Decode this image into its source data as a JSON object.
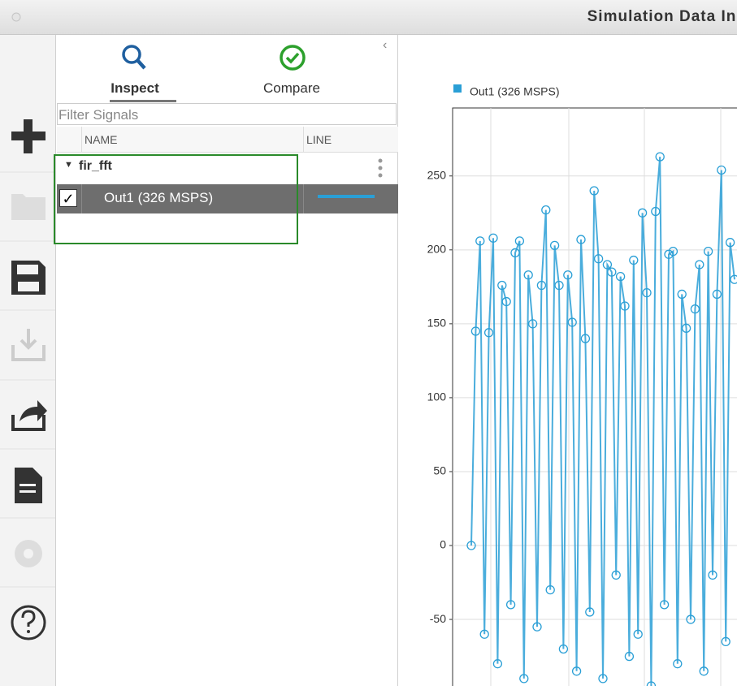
{
  "window": {
    "title": "Simulation Data Inspector"
  },
  "tabs": [
    "Inspect",
    "Compare"
  ],
  "filter_placeholder": "Filter Signals",
  "table": {
    "headers": [
      "NAME",
      "LINE"
    ],
    "group": "fir_fft",
    "signal": "Out1 (326 MSPS)",
    "checked": true
  },
  "chart_data": {
    "type": "line",
    "series": [
      {
        "name": "Out1 (326 MSPS)",
        "color": "#2a9fd6",
        "values": [
          0,
          145,
          206,
          -60,
          144,
          208,
          -80,
          176,
          165,
          -40,
          198,
          206,
          -90,
          183,
          150,
          -55,
          176,
          227,
          -30,
          203,
          176,
          -70,
          183,
          151,
          -85,
          207,
          140,
          -45,
          240,
          194,
          -90,
          190,
          185,
          -20,
          182,
          162,
          -75,
          193,
          -60,
          225,
          171,
          -95,
          226,
          263,
          -40,
          197,
          199,
          -80,
          170,
          147,
          -50,
          160,
          190,
          -85,
          199,
          -20,
          170,
          254,
          -65,
          205,
          180
        ]
      }
    ],
    "ylim": [
      -95,
      296
    ],
    "yticks": [
      -50,
      0,
      50,
      100,
      150,
      200,
      250
    ],
    "grid": true
  }
}
